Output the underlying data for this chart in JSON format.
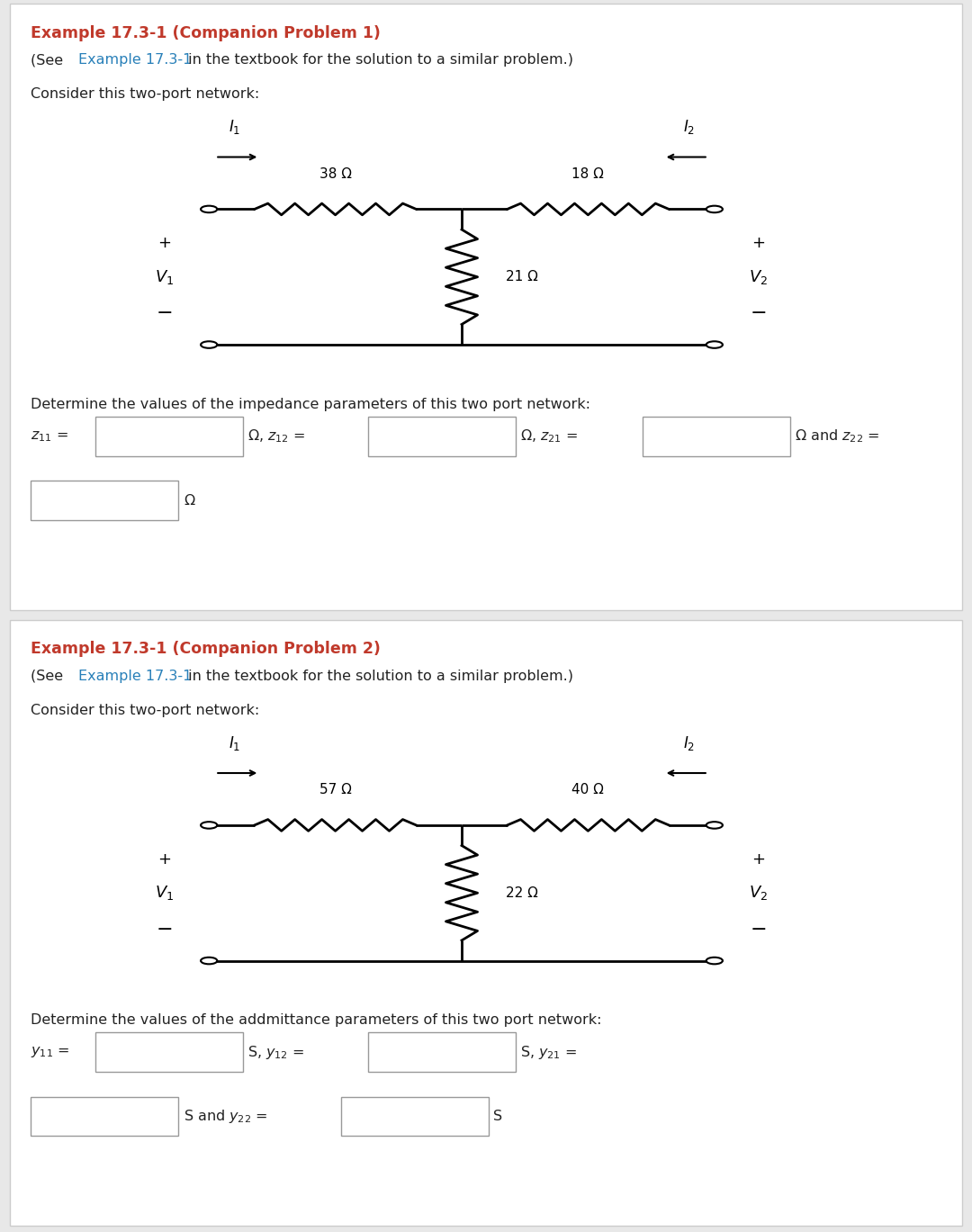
{
  "bg_color": "#e8e8e8",
  "panel_bg": "#ffffff",
  "border_color": "#cccccc",
  "title_color": "#c0392b",
  "link_color": "#2980b9",
  "text_color": "#222222",
  "panel1": {
    "title": "Example 17.3-1 (Companion Problem 1)",
    "link_text": "Example 17.3-1",
    "subtitle": " in the textbook for the solution to a similar problem.)",
    "consider_text": "Consider this two-port network:",
    "R1": "38 Ω",
    "R2": "18 Ω",
    "R3": "21 Ω",
    "determine_text": "Determine the values of the impedance parameters of this two port network:",
    "type": "impedance"
  },
  "panel2": {
    "title": "Example 17.3-1 (Companion Problem 2)",
    "link_text": "Example 17.3-1",
    "subtitle": " in the textbook for the solution to a similar problem.)",
    "consider_text": "Consider this two-port network:",
    "R1": "57 Ω",
    "R2": "40 Ω",
    "R3": "22 Ω",
    "determine_text": "Determine the values of the addmittance parameters of this two port network:",
    "type": "admittance"
  }
}
